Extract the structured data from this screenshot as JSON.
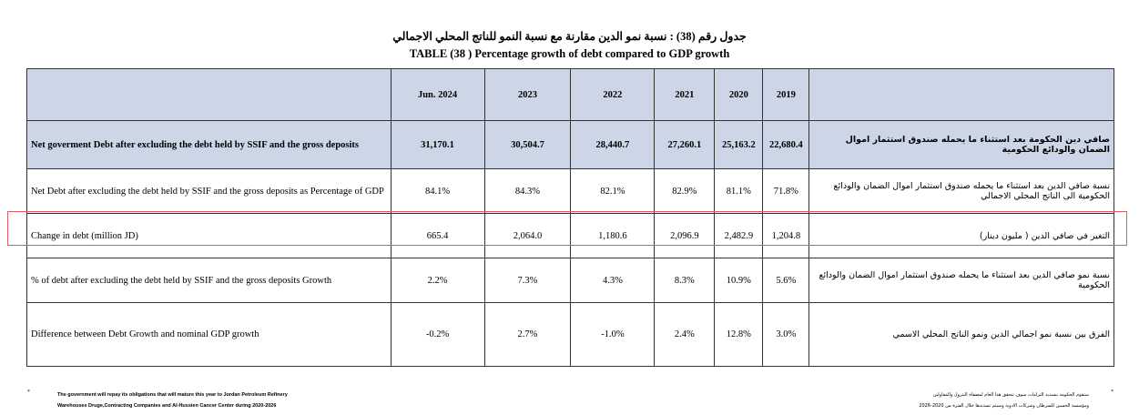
{
  "title": {
    "arabic": "جدول رقم (38) : نسبة نمو الدين مقارنة مع نسبة النمو للناتج المحلي الاجمالي",
    "english": "TABLE (38 ) Percentage growth of debt compared to GDP growth"
  },
  "table": {
    "years": [
      "Jun. 2024",
      "2023",
      "2022",
      "2021",
      "2020",
      "2019"
    ],
    "rows": [
      {
        "en": "Net goverment Debt after excluding the debt held by SSIF and the gross deposits",
        "ar": "صافي دين الحكومة بعد استثناء ما يحمله صندوق استثمار اموال الضمان والودائع الحكومية",
        "values": [
          "31,170.1",
          "30,504.7",
          "28,440.7",
          "27,260.1",
          "25,163.2",
          "22,680.4"
        ]
      },
      {
        "en": "Net Debt after excluding the debt held by SSIF and the gross deposits as Percentage of GDP",
        "ar": "نسبة صافي الدين بعد استثناء ما يحمله صندوق استثمار اموال الضمان والودائع الحكومية الى الناتج المحلي الاجمالي",
        "values": [
          "84.1%",
          "84.3%",
          "82.1%",
          "82.9%",
          "81.1%",
          "71.8%"
        ]
      },
      {
        "en": "Change in debt (million JD)",
        "ar": "التغير في صافي الدين ( مليون دينار)",
        "values": [
          "665.4",
          "2,064.0",
          "1,180.6",
          "2,096.9",
          "2,482.9",
          "1,204.8"
        ]
      },
      {
        "en": "% of debt after excluding the debt held by SSIF and the gross deposits Growth",
        "ar": "نسبة نمو صافي الدين بعد استثناء ما يحمله صندوق استثمار اموال الضمان والودائع الحكومية",
        "values": [
          "2.2%",
          "7.3%",
          "4.3%",
          "8.3%",
          "10.9%",
          "5.6%"
        ]
      },
      {
        "en": "Difference between Debt Growth and nominal GDP growth",
        "ar": "الفرق بين نسبة نمو اجمالي الدين ونمو الناتج المحلي الاسمي",
        "values": [
          "-0.2%",
          "2.7%",
          "-1.0%",
          "2.4%",
          "12.8%",
          "3.0%"
        ]
      }
    ]
  },
  "footnote": {
    "bullet": "*",
    "en_line1": "The government will repay its obligations that will mature this year to Jordan Petroleum Refinery",
    "en_line2": "Warehouses Druge,Contracting Companies and Al-Hussien Cancer Center during 2020-2026",
    "ar_line1": "ستقوم الحكومة بتسديد التزامات سوف تتحقق هذا العام لمصفاة البترول والمقاولين",
    "ar_line2": "ومؤسسة الحسين للسرطان وشركات الادوية وسيتم تسديدها خلال الفترة من 2020-2026"
  }
}
